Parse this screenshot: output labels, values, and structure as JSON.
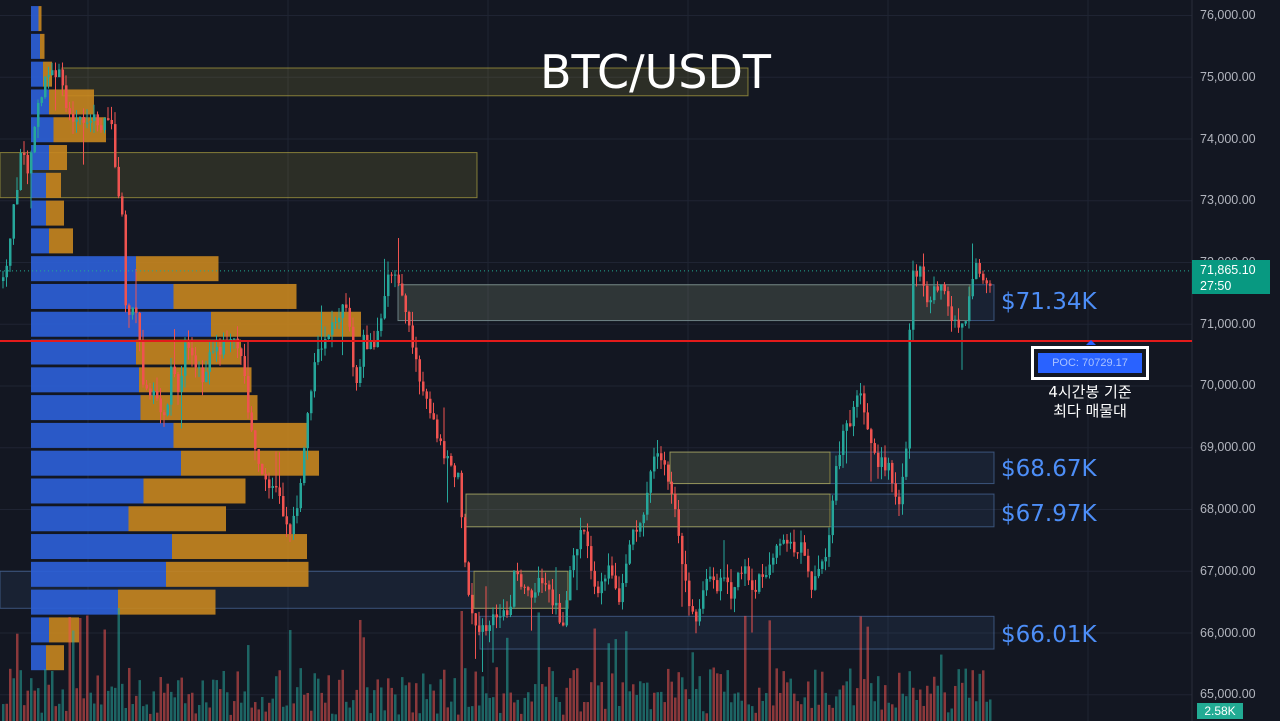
{
  "chart_data": {
    "type": "candlestick",
    "title": "BTC/USDT",
    "ylim": [
      64900,
      76250
    ],
    "y_ticks": [
      "76,000.00",
      "75,000.00",
      "74,000.00",
      "73,000.00",
      "72,000.00",
      "71,000.00",
      "70,000.00",
      "69,000.00",
      "68,000.00",
      "67,000.00",
      "66,000.00",
      "65,000.00"
    ],
    "last_price": "71,865.10",
    "countdown": "27:50",
    "volume_label": "2.58K",
    "poc": {
      "label": "POC: 70729.17",
      "value": 70729.17,
      "note_line1": "4시간봉 기준",
      "note_line2": "최다 매물대"
    },
    "levels": [
      {
        "label": "$71.34K",
        "value": 71340
      },
      {
        "label": "$68.67K",
        "value": 68670
      },
      {
        "label": "$67.97K",
        "value": 67970
      },
      {
        "label": "$66.01K",
        "value": 66010
      }
    ],
    "zones": [
      {
        "kind": "supply",
        "top": 75150,
        "bottom": 74700
      },
      {
        "kind": "supply",
        "top": 73780,
        "bottom": 73050
      },
      {
        "kind": "supply",
        "top": 71640,
        "bottom": 71060
      },
      {
        "kind": "demand",
        "top": 71640,
        "bottom": 71060
      },
      {
        "kind": "demand",
        "top": 68930,
        "bottom": 68420
      },
      {
        "kind": "supply",
        "top": 68930,
        "bottom": 68420
      },
      {
        "kind": "demand",
        "top": 68250,
        "bottom": 67720
      },
      {
        "kind": "supply",
        "top": 68250,
        "bottom": 67720
      },
      {
        "kind": "demand",
        "top": 67000,
        "bottom": 66400
      },
      {
        "kind": "supply",
        "top": 67000,
        "bottom": 66400
      },
      {
        "kind": "demand",
        "top": 66270,
        "bottom": 65740
      }
    ],
    "volume_profile": [
      {
        "price": 75950,
        "buy": 0.05,
        "sell": 0.02
      },
      {
        "price": 75500,
        "buy": 0.06,
        "sell": 0.03
      },
      {
        "price": 75050,
        "buy": 0.08,
        "sell": 0.06
      },
      {
        "price": 74600,
        "buy": 0.12,
        "sell": 0.3
      },
      {
        "price": 74150,
        "buy": 0.15,
        "sell": 0.35
      },
      {
        "price": 73700,
        "buy": 0.12,
        "sell": 0.12
      },
      {
        "price": 73250,
        "buy": 0.1,
        "sell": 0.1
      },
      {
        "price": 72800,
        "buy": 0.1,
        "sell": 0.12
      },
      {
        "price": 72350,
        "buy": 0.12,
        "sell": 0.16
      },
      {
        "price": 71900,
        "buy": 0.7,
        "sell": 0.55
      },
      {
        "price": 71450,
        "buy": 0.95,
        "sell": 0.82
      },
      {
        "price": 71000,
        "buy": 1.2,
        "sell": 1.0
      },
      {
        "price": 70550,
        "buy": 0.7,
        "sell": 0.7
      },
      {
        "price": 70100,
        "buy": 0.72,
        "sell": 0.75
      },
      {
        "price": 69650,
        "buy": 0.73,
        "sell": 0.78
      },
      {
        "price": 69200,
        "buy": 0.95,
        "sell": 0.9
      },
      {
        "price": 68750,
        "buy": 1.0,
        "sell": 0.92
      },
      {
        "price": 68300,
        "buy": 0.75,
        "sell": 0.68
      },
      {
        "price": 67850,
        "buy": 0.65,
        "sell": 0.65
      },
      {
        "price": 67400,
        "buy": 0.94,
        "sell": 0.9
      },
      {
        "price": 66950,
        "buy": 0.9,
        "sell": 0.95
      },
      {
        "price": 66500,
        "buy": 0.58,
        "sell": 0.65
      },
      {
        "price": 66050,
        "buy": 0.12,
        "sell": 0.2
      },
      {
        "price": 65600,
        "buy": 0.1,
        "sell": 0.12
      }
    ],
    "candle_path": [
      [
        0,
        71700
      ],
      [
        3,
        71600
      ],
      [
        10,
        72500
      ],
      [
        18,
        73500
      ],
      [
        22,
        74000
      ],
      [
        26,
        73300
      ],
      [
        32,
        74200
      ],
      [
        40,
        74700
      ],
      [
        48,
        75100
      ],
      [
        58,
        75000
      ],
      [
        64,
        74600
      ],
      [
        72,
        74300
      ],
      [
        80,
        74300
      ],
      [
        90,
        74350
      ],
      [
        100,
        74200
      ],
      [
        110,
        74400
      ],
      [
        116,
        73000
      ],
      [
        120,
        73100
      ],
      [
        124,
        71300
      ],
      [
        130,
        71200
      ],
      [
        136,
        71100
      ],
      [
        142,
        70000
      ],
      [
        150,
        69900
      ],
      [
        156,
        69700
      ],
      [
        162,
        69300
      ],
      [
        170,
        70200
      ],
      [
        178,
        70000
      ],
      [
        186,
        70800
      ],
      [
        194,
        70300
      ],
      [
        202,
        70100
      ],
      [
        210,
        70600
      ],
      [
        218,
        70500
      ],
      [
        226,
        70700
      ],
      [
        234,
        70800
      ],
      [
        242,
        70300
      ],
      [
        250,
        69200
      ],
      [
        258,
        68800
      ],
      [
        266,
        68500
      ],
      [
        274,
        68300
      ],
      [
        282,
        68000
      ],
      [
        290,
        67600
      ],
      [
        298,
        68300
      ],
      [
        306,
        69400
      ],
      [
        314,
        70400
      ],
      [
        322,
        70800
      ],
      [
        330,
        70900
      ],
      [
        338,
        71200
      ],
      [
        346,
        71300
      ],
      [
        354,
        69800
      ],
      [
        362,
        70800
      ],
      [
        370,
        70600
      ],
      [
        378,
        70900
      ],
      [
        386,
        71800
      ],
      [
        394,
        71700
      ],
      [
        402,
        71500
      ],
      [
        410,
        70900
      ],
      [
        418,
        70000
      ],
      [
        426,
        69700
      ],
      [
        434,
        69300
      ],
      [
        442,
        68900
      ],
      [
        450,
        68700
      ],
      [
        458,
        68500
      ],
      [
        466,
        66700
      ],
      [
        474,
        66100
      ],
      [
        482,
        66000
      ],
      [
        490,
        66300
      ],
      [
        498,
        66400
      ],
      [
        506,
        66200
      ],
      [
        514,
        67000
      ],
      [
        522,
        66800
      ],
      [
        530,
        66600
      ],
      [
        538,
        66900
      ],
      [
        546,
        66700
      ],
      [
        554,
        66400
      ],
      [
        562,
        66200
      ],
      [
        570,
        67100
      ],
      [
        578,
        67600
      ],
      [
        586,
        67500
      ],
      [
        594,
        66700
      ],
      [
        602,
        66900
      ],
      [
        610,
        67100
      ],
      [
        618,
        66600
      ],
      [
        626,
        67300
      ],
      [
        634,
        67700
      ],
      [
        642,
        67900
      ],
      [
        650,
        68700
      ],
      [
        658,
        68800
      ],
      [
        666,
        68600
      ],
      [
        674,
        67900
      ],
      [
        682,
        67000
      ],
      [
        690,
        66200
      ],
      [
        698,
        66300
      ],
      [
        706,
        67000
      ],
      [
        714,
        66700
      ],
      [
        722,
        66900
      ],
      [
        730,
        66600
      ],
      [
        738,
        66900
      ],
      [
        746,
        67000
      ],
      [
        754,
        66700
      ],
      [
        762,
        67000
      ],
      [
        770,
        67100
      ],
      [
        778,
        67400
      ],
      [
        786,
        67500
      ],
      [
        794,
        67300
      ],
      [
        802,
        67500
      ],
      [
        810,
        66700
      ],
      [
        818,
        67000
      ],
      [
        826,
        67400
      ],
      [
        834,
        68600
      ],
      [
        842,
        69200
      ],
      [
        850,
        69400
      ],
      [
        858,
        70000
      ],
      [
        866,
        69300
      ],
      [
        874,
        68800
      ],
      [
        882,
        68700
      ],
      [
        890,
        68600
      ],
      [
        898,
        68100
      ],
      [
        906,
        69200
      ],
      [
        910,
        71800
      ],
      [
        918,
        71900
      ],
      [
        926,
        71300
      ],
      [
        934,
        71600
      ],
      [
        942,
        71500
      ],
      [
        950,
        71000
      ],
      [
        958,
        70900
      ],
      [
        966,
        71100
      ],
      [
        974,
        72000
      ],
      [
        982,
        71800
      ],
      [
        990,
        71700
      ]
    ]
  }
}
